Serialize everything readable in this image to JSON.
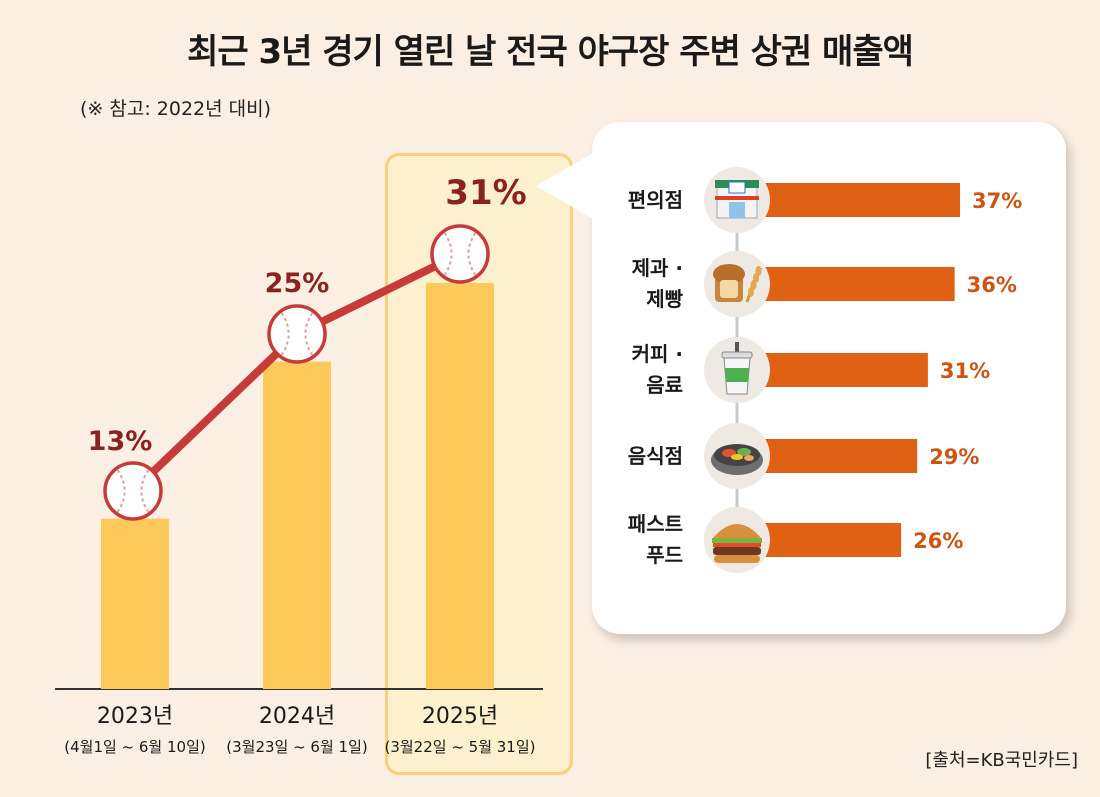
{
  "title": "최근 3년 경기 열린 날 전국 야구장 주변 상권 매출액",
  "subtitle": "(※ 참고: 2022년 대비)",
  "source": "[출처=KB국민카드]",
  "colors": {
    "bar": "#fdc95a",
    "line": "#c63a3a",
    "label": "#8b2222",
    "hbar": "#e06114",
    "hlabel": "#cc5512"
  },
  "chart_data": [
    {
      "type": "bar",
      "categories": [
        "2023년",
        "2024년",
        "2025년"
      ],
      "periods": [
        "(4월1일 ~ 6월 10일)",
        "(3월23일 ~ 6월 1일)",
        "(3월22일 ~ 5월 31일)"
      ],
      "values": [
        13,
        25,
        31
      ],
      "value_labels": [
        "13%",
        "25%",
        "31%"
      ],
      "ylim": [
        0,
        40
      ],
      "overlay": "line with baseball markers",
      "grid": false
    },
    {
      "type": "bar",
      "orientation": "horizontal",
      "categories": [
        {
          "line1": "편의점",
          "line2": "",
          "icon": "convenience-store-icon"
        },
        {
          "line1": "제과 ·",
          "line2": "제빵",
          "icon": "bread-icon"
        },
        {
          "line1": "커피 ·",
          "line2": "음료",
          "icon": "coffee-cup-icon"
        },
        {
          "line1": "음식점",
          "line2": "",
          "icon": "bibimbap-icon"
        },
        {
          "line1": "패스트",
          "line2": "푸드",
          "icon": "hamburger-icon"
        }
      ],
      "values": [
        37,
        36,
        31,
        29,
        26
      ],
      "value_labels": [
        "37%",
        "36%",
        "31%",
        "29%",
        "26%"
      ],
      "xlim": [
        0,
        40
      ],
      "grid": false
    }
  ]
}
